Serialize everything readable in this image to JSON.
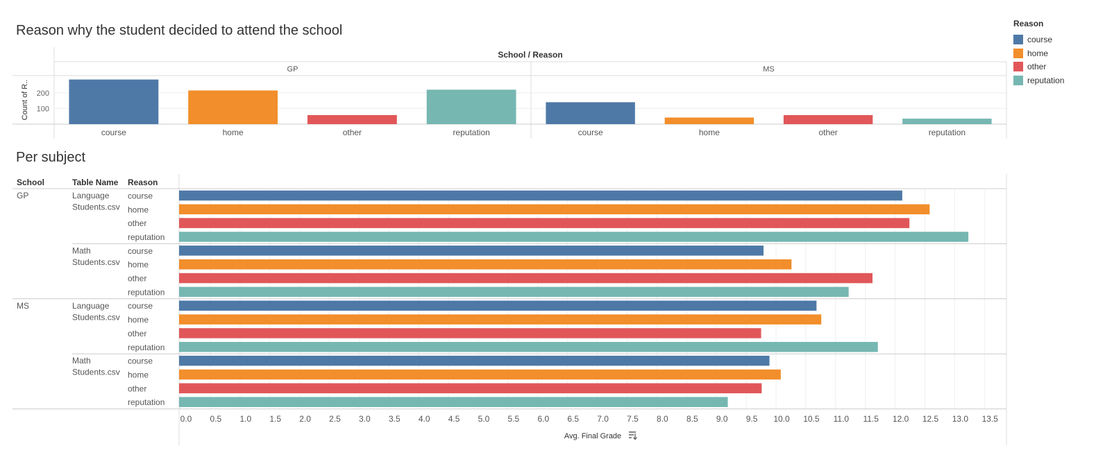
{
  "colors": {
    "course": "#4e79a7",
    "home": "#f28e2b",
    "other": "#e15759",
    "reputation": "#76b7b2"
  },
  "legend": {
    "title": "Reason",
    "items": [
      "course",
      "home",
      "other",
      "reputation"
    ]
  },
  "chart_data": [
    {
      "type": "bar",
      "title": "Reason why the student decided to attend the school",
      "column_header": "School / Reason",
      "ylabel": "Count of R..",
      "yticks": [
        100,
        200
      ],
      "ylim": [
        0,
        310
      ],
      "groups": [
        {
          "name": "GP",
          "categories": [
            "course",
            "home",
            "other",
            "reputation"
          ],
          "values": [
            285,
            215,
            58,
            220
          ]
        },
        {
          "name": "MS",
          "categories": [
            "course",
            "home",
            "other",
            "reputation"
          ],
          "values": [
            140,
            42,
            58,
            35
          ]
        }
      ]
    },
    {
      "type": "bar",
      "orientation": "horizontal",
      "title": "Per subject",
      "row_headers": [
        "School",
        "Table Name",
        "Reason"
      ],
      "xlabel": "Avg. Final Grade",
      "xlim": [
        0,
        14
      ],
      "xticks": [
        "0.0",
        "0.5",
        "1.0",
        "1.5",
        "2.0",
        "2.5",
        "3.0",
        "3.5",
        "4.0",
        "4.5",
        "5.0",
        "5.5",
        "6.0",
        "6.5",
        "7.0",
        "7.5",
        "8.0",
        "8.5",
        "9.0",
        "9.5",
        "10.0",
        "10.5",
        "11.0",
        "11.5",
        "12.0",
        "12.5",
        "13.0",
        "13.5"
      ],
      "rows": [
        {
          "school": "GP",
          "table_lines": [
            "Language",
            "Students.csv"
          ],
          "reasons": [
            "course",
            "home",
            "other",
            "reputation"
          ],
          "values": [
            12.12,
            12.58,
            12.24,
            13.23
          ]
        },
        {
          "school": "",
          "table_lines": [
            "Math",
            "Students.csv"
          ],
          "reasons": [
            "course",
            "home",
            "other",
            "reputation"
          ],
          "values": [
            9.79,
            10.26,
            11.62,
            11.22
          ]
        },
        {
          "school": "MS",
          "table_lines": [
            "Language",
            "Students.csv"
          ],
          "reasons": [
            "course",
            "home",
            "other",
            "reputation"
          ],
          "values": [
            10.68,
            10.76,
            9.75,
            11.71
          ]
        },
        {
          "school": "",
          "table_lines": [
            "Math",
            "Students.csv"
          ],
          "reasons": [
            "course",
            "home",
            "other",
            "reputation"
          ],
          "values": [
            9.89,
            10.08,
            9.76,
            9.19
          ]
        }
      ]
    }
  ]
}
